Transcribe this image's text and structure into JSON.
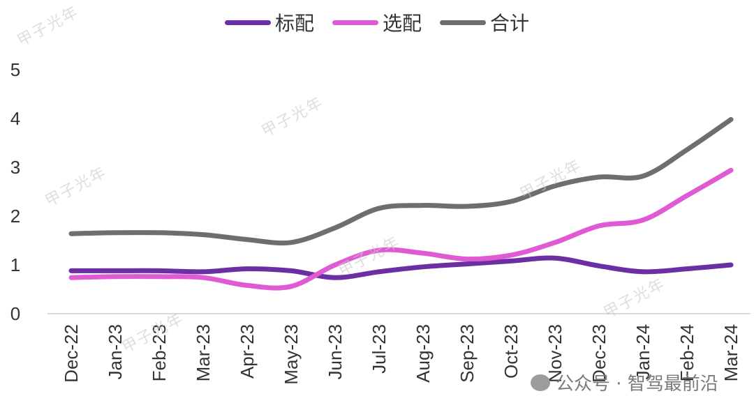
{
  "chart_data": {
    "type": "line",
    "categories": [
      "Dec-22",
      "Jan-23",
      "Feb-23",
      "Mar-23",
      "Apr-23",
      "May-23",
      "Jun-23",
      "Jul-23",
      "Aug-23",
      "Sep-23",
      "Oct-23",
      "Nov-23",
      "Dec-23",
      "Jan-24",
      "Feb-24",
      "Mar-24"
    ],
    "series": [
      {
        "name": "标配",
        "color": "#6b2fa3",
        "values": [
          0.88,
          0.88,
          0.88,
          0.86,
          0.92,
          0.88,
          0.74,
          0.86,
          0.96,
          1.02,
          1.08,
          1.14,
          0.98,
          0.86,
          0.92,
          1.0
        ]
      },
      {
        "name": "选配",
        "color": "#e05bd3",
        "values": [
          0.74,
          0.76,
          0.76,
          0.74,
          0.58,
          0.56,
          1.0,
          1.3,
          1.24,
          1.12,
          1.2,
          1.46,
          1.8,
          1.92,
          2.42,
          2.94
        ]
      },
      {
        "name": "合计",
        "color": "#6e6e72",
        "values": [
          1.64,
          1.66,
          1.66,
          1.62,
          1.52,
          1.46,
          1.76,
          2.16,
          2.22,
          2.2,
          2.3,
          2.62,
          2.8,
          2.82,
          3.36,
          3.98
        ]
      }
    ],
    "ylim": [
      0,
      5
    ],
    "yticks": [
      0,
      1,
      2,
      3,
      4,
      5
    ],
    "grid": false,
    "legend_position": "top"
  },
  "watermarks": [
    "甲子光年"
  ],
  "footer": {
    "source_text": "公众号 · 智驾最前沿"
  }
}
